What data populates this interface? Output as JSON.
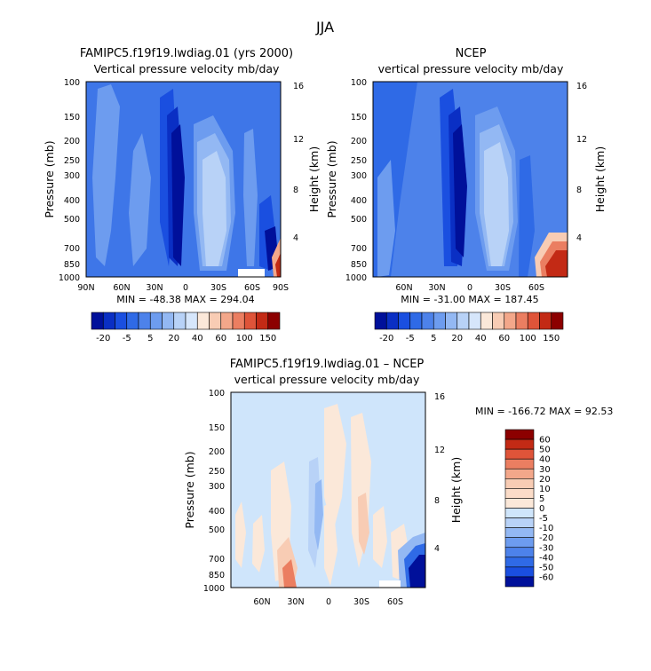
{
  "title": "JJA",
  "colors": {
    "background_field": "#cfe5fb",
    "deep_blue": "#00109a",
    "dark_red": "#8c0000"
  },
  "chart_data": [
    {
      "type": "heatmap",
      "id": "model",
      "title": "FAMIPC5.f19f19.lwdiag.01 (yrs 2000)",
      "subtitle": "Vertical pressure velocity  mb/day",
      "ylabel": "Pressure (mb)",
      "y2label": "Height (km)",
      "x_ticks": [
        "90N",
        "60N",
        "30N",
        "0",
        "30S",
        "60S",
        "90S"
      ],
      "y_ticks": [
        100,
        150,
        200,
        250,
        300,
        400,
        500,
        700,
        850,
        1000
      ],
      "y2_ticks": [
        16,
        12,
        8,
        4
      ],
      "stats": "MIN = -48.38   MAX = 294.04",
      "x_range": [
        90,
        -90
      ],
      "y_range": [
        100,
        1000
      ],
      "log_pressure_axis": true
    },
    {
      "type": "heatmap",
      "id": "obs",
      "title": "NCEP",
      "subtitle": "vertical pressure velocity  mb/day",
      "ylabel": "Pressure (mb)",
      "y2label": "Height (km)",
      "x_ticks": [
        "60N",
        "30N",
        "0",
        "30S",
        "60S"
      ],
      "y_ticks": [
        100,
        150,
        200,
        250,
        300,
        400,
        500,
        700,
        850,
        1000
      ],
      "y2_ticks": [
        16,
        12,
        8,
        4
      ],
      "stats": "MIN = -31.00   MAX = 187.45",
      "log_pressure_axis": true
    },
    {
      "type": "heatmap",
      "id": "diff",
      "title": "FAMIPC5.f19f19.lwdiag.01 – NCEP",
      "subtitle": "vertical pressure velocity  mb/day",
      "ylabel": "Pressure (mb)",
      "y2label": "Height (km)",
      "x_ticks": [
        "60N",
        "30N",
        "0",
        "30S",
        "60S"
      ],
      "y_ticks": [
        100,
        150,
        200,
        250,
        300,
        400,
        500,
        700,
        850,
        1000
      ],
      "y2_ticks": [
        16,
        12,
        8,
        4
      ],
      "stats": "MIN = -166.72  MAX =  92.53",
      "log_pressure_axis": true
    }
  ],
  "colorbar_top": {
    "labels": [
      "-20",
      "-5",
      "5",
      "20",
      "40",
      "60",
      "100",
      "150"
    ],
    "colors": [
      "#00109a",
      "#0a2fc4",
      "#1a4fe0",
      "#2f6ae6",
      "#4d82ea",
      "#6d9cef",
      "#93b8f3",
      "#b8d2f7",
      "#d6e6fb",
      "#fbe8d9",
      "#f8ccb4",
      "#f3a78a",
      "#eb7e61",
      "#df5439",
      "#c32a15",
      "#8c0000"
    ]
  },
  "colorbar_diff": {
    "labels": [
      "60",
      "50",
      "40",
      "30",
      "20",
      "10",
      "5",
      "0",
      "-5",
      "-10",
      "-20",
      "-30",
      "-40",
      "-50",
      "-60"
    ],
    "colors": [
      "#8c0000",
      "#c32a15",
      "#df5439",
      "#eb7e61",
      "#f3a78a",
      "#f8ccb4",
      "#fbdcc8",
      "#fbe8d9",
      "#cfe5fb",
      "#b8d2f7",
      "#93b8f3",
      "#6d9cef",
      "#4d82ea",
      "#2f6ae6",
      "#1a4fe0",
      "#00109a"
    ]
  }
}
